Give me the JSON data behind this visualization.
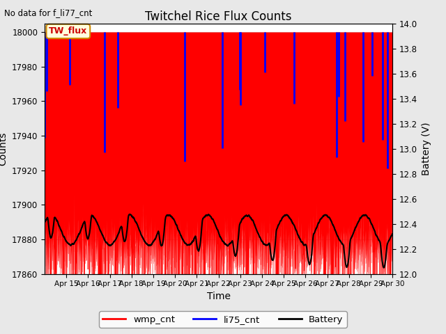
{
  "title": "Twitchel Rice Flux Counts",
  "subtitle": "No data for f_li77_cnt",
  "xlabel": "Time",
  "ylabel_left": "Counts",
  "ylabel_right": "Battery (V)",
  "ylim_left": [
    17860,
    18005
  ],
  "ylim_right": [
    12.0,
    14.0
  ],
  "yticks_left": [
    17860,
    17880,
    17900,
    17920,
    17940,
    17960,
    17980,
    18000
  ],
  "yticks_right": [
    12.0,
    12.2,
    12.4,
    12.6,
    12.8,
    13.0,
    13.2,
    13.4,
    13.6,
    13.8,
    14.0
  ],
  "xstart": 14.0,
  "xend": 30.0,
  "xtick_positions": [
    15,
    16,
    17,
    18,
    19,
    20,
    21,
    22,
    23,
    24,
    25,
    26,
    27,
    28,
    29,
    30
  ],
  "xtick_labels": [
    "Apr 15",
    "Apr 16",
    "Apr 17",
    "Apr 18",
    "Apr 19",
    "Apr 20",
    "Apr 21",
    "Apr 22",
    "Apr 23",
    "Apr 24",
    "Apr 25",
    "Apr 26",
    "Apr 27",
    "Apr 28",
    "Apr 29",
    "Apr 30"
  ],
  "legend_label_wmp": "wmp_cnt",
  "legend_label_li75": "li75_cnt",
  "legend_label_battery": "Battery",
  "wmp_color": "red",
  "li75_color": "blue",
  "battery_color": "black",
  "box_label": "TW_flux",
  "box_facecolor": "#ffffdd",
  "box_edgecolor": "#cc8800",
  "box_textcolor": "#cc0000",
  "bg_color": "#e8e8e8",
  "plot_bg_color": "#ffffff",
  "grid_color": "#cccccc",
  "wmp_base": 18000,
  "wmp_fill_bottom": 17860,
  "battery_v_min": 12.0,
  "battery_v_max": 14.0,
  "counts_min": 17860,
  "counts_max": 18005
}
